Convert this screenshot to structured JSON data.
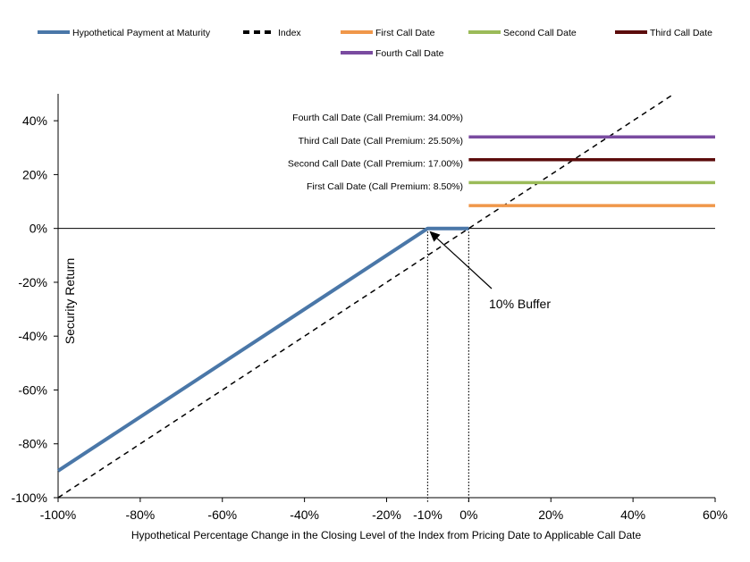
{
  "chart_data": {
    "type": "line",
    "title": "",
    "xlabel": "Hypothetical Percentage Change in the Closing Level of the Index from Pricing Date to Applicable Call Date",
    "ylabel": "Security Return",
    "xlim": [
      -100,
      60
    ],
    "ylim": [
      -100,
      50
    ],
    "x_ticks": [
      -100,
      -80,
      -60,
      -40,
      -20,
      0,
      20,
      40,
      60
    ],
    "x_tick_labels": [
      "-100%",
      "-80%",
      "-60%",
      "-40%",
      "-20%",
      "0%",
      "20%",
      "40%",
      "60%"
    ],
    "extra_x_tick": {
      "value": -10,
      "label": "-10%"
    },
    "y_ticks": [
      -100,
      -80,
      -60,
      -40,
      -20,
      0,
      20,
      40
    ],
    "y_tick_labels": [
      "-100%",
      "-80%",
      "-60%",
      "-40%",
      "-20%",
      "0%",
      "20%",
      "40%"
    ],
    "grid": false,
    "legend_position": "top",
    "legend": [
      {
        "label": "Hypothetical Payment at Maturity",
        "color": "#4a77a8",
        "style": "solid"
      },
      {
        "label": "Index",
        "color": "#000000",
        "style": "dashed"
      },
      {
        "label": "First Call Date",
        "color": "#f0974a",
        "style": "solid"
      },
      {
        "label": "Second Call Date",
        "color": "#9bbb59",
        "style": "solid"
      },
      {
        "label": "Third Call Date",
        "color": "#5c0c0c",
        "style": "solid"
      },
      {
        "label": "Fourth Call Date",
        "color": "#7a4ba0",
        "style": "solid"
      }
    ],
    "series": [
      {
        "name": "Hypothetical Payment at Maturity",
        "color": "#4a77a8",
        "style": "solid",
        "x": [
          -100,
          -10,
          0
        ],
        "y": [
          -90,
          0,
          0
        ]
      },
      {
        "name": "Index",
        "color": "#000000",
        "style": "dashed",
        "x": [
          -100,
          50
        ],
        "y": [
          -100,
          50
        ]
      },
      {
        "name": "First Call Date",
        "color": "#f0974a",
        "style": "solid",
        "x": [
          0,
          60
        ],
        "y": [
          8.5,
          8.5
        ]
      },
      {
        "name": "Second Call Date",
        "color": "#9bbb59",
        "style": "solid",
        "x": [
          0,
          60
        ],
        "y": [
          17,
          17
        ]
      },
      {
        "name": "Third Call Date",
        "color": "#5c0c0c",
        "style": "solid",
        "x": [
          0,
          60
        ],
        "y": [
          25.5,
          25.5
        ]
      },
      {
        "name": "Fourth Call Date",
        "color": "#7a4ba0",
        "style": "solid",
        "x": [
          0,
          60
        ],
        "y": [
          34,
          34
        ]
      }
    ],
    "annotations": [
      {
        "text": "Fourth Call Date (Call Premium: 34.00%)",
        "y": 34
      },
      {
        "text": "Third Call Date (Call Premium: 25.50%)",
        "y": 25.5
      },
      {
        "text": "Second Call Date (Call Premium: 17.00%)",
        "y": 17
      },
      {
        "text": "First Call Date (Call Premium: 8.50%)",
        "y": 8.5
      }
    ],
    "buffer_annotation": {
      "text": "10% Buffer",
      "arrow_to": [
        -10,
        0
      ]
    },
    "vertical_dotted_lines": [
      -10,
      0
    ]
  }
}
